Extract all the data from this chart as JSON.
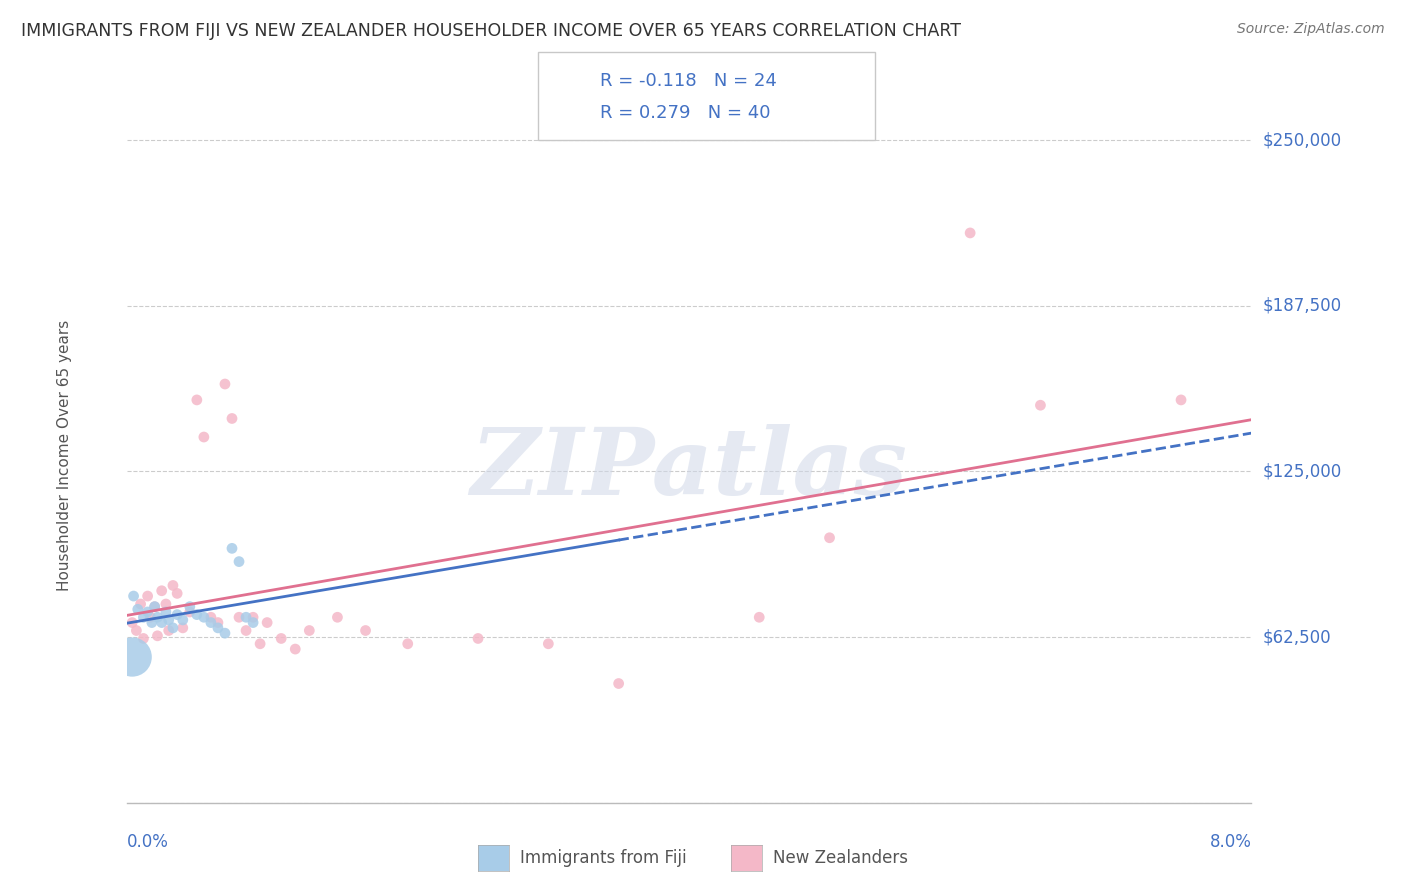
{
  "title": "IMMIGRANTS FROM FIJI VS NEW ZEALANDER HOUSEHOLDER INCOME OVER 65 YEARS CORRELATION CHART",
  "source": "Source: ZipAtlas.com",
  "ylabel": "Householder Income Over 65 years",
  "xlim": [
    0.0,
    8.0
  ],
  "ylim": [
    0,
    262500
  ],
  "yticks": [
    0,
    62500,
    125000,
    187500,
    250000
  ],
  "ytick_labels": [
    "",
    "$62,500",
    "$125,000",
    "$187,500",
    "$250,000"
  ],
  "r1": "-0.118",
  "n1": "24",
  "r2": "0.279",
  "n2": "40",
  "legend_label1": "Immigrants from Fiji",
  "legend_label2": "New Zealanders",
  "color_fiji": "#a8cce8",
  "color_nz": "#f4b8c8",
  "color_fiji_line": "#4472c4",
  "color_nz_line": "#e07090",
  "watermark": "ZIPatlas",
  "fiji_points": [
    [
      0.05,
      78000
    ],
    [
      0.08,
      73000
    ],
    [
      0.12,
      70000
    ],
    [
      0.15,
      72000
    ],
    [
      0.18,
      68000
    ],
    [
      0.2,
      74000
    ],
    [
      0.22,
      70000
    ],
    [
      0.25,
      68000
    ],
    [
      0.28,
      72000
    ],
    [
      0.3,
      69000
    ],
    [
      0.33,
      66000
    ],
    [
      0.36,
      71000
    ],
    [
      0.4,
      69000
    ],
    [
      0.45,
      74000
    ],
    [
      0.5,
      71000
    ],
    [
      0.55,
      70000
    ],
    [
      0.6,
      68000
    ],
    [
      0.65,
      66000
    ],
    [
      0.7,
      64000
    ],
    [
      0.75,
      96000
    ],
    [
      0.8,
      91000
    ],
    [
      0.85,
      70000
    ],
    [
      0.9,
      68000
    ],
    [
      0.04,
      55000
    ]
  ],
  "fiji_sizes": [
    60,
    60,
    60,
    60,
    60,
    60,
    60,
    60,
    60,
    60,
    60,
    60,
    60,
    60,
    60,
    60,
    60,
    60,
    60,
    60,
    60,
    60,
    60,
    800
  ],
  "nz_points": [
    [
      0.04,
      68000
    ],
    [
      0.07,
      65000
    ],
    [
      0.1,
      75000
    ],
    [
      0.12,
      62000
    ],
    [
      0.15,
      78000
    ],
    [
      0.17,
      70000
    ],
    [
      0.2,
      74000
    ],
    [
      0.22,
      63000
    ],
    [
      0.25,
      80000
    ],
    [
      0.28,
      75000
    ],
    [
      0.3,
      65000
    ],
    [
      0.33,
      82000
    ],
    [
      0.36,
      79000
    ],
    [
      0.4,
      66000
    ],
    [
      0.45,
      72000
    ],
    [
      0.5,
      152000
    ],
    [
      0.55,
      138000
    ],
    [
      0.6,
      70000
    ],
    [
      0.65,
      68000
    ],
    [
      0.7,
      158000
    ],
    [
      0.75,
      145000
    ],
    [
      0.8,
      70000
    ],
    [
      0.85,
      65000
    ],
    [
      0.9,
      70000
    ],
    [
      0.95,
      60000
    ],
    [
      1.0,
      68000
    ],
    [
      1.1,
      62000
    ],
    [
      1.2,
      58000
    ],
    [
      1.3,
      65000
    ],
    [
      1.5,
      70000
    ],
    [
      1.7,
      65000
    ],
    [
      2.0,
      60000
    ],
    [
      2.5,
      62000
    ],
    [
      3.0,
      60000
    ],
    [
      3.5,
      45000
    ],
    [
      4.5,
      70000
    ],
    [
      5.0,
      100000
    ],
    [
      6.0,
      215000
    ],
    [
      6.5,
      150000
    ],
    [
      7.5,
      152000
    ]
  ],
  "nz_sizes": [
    60,
    60,
    60,
    60,
    60,
    60,
    60,
    60,
    60,
    60,
    60,
    60,
    60,
    60,
    60,
    60,
    60,
    60,
    60,
    60,
    60,
    60,
    60,
    60,
    60,
    60,
    60,
    60,
    60,
    60,
    60,
    60,
    60,
    60,
    60,
    60,
    60,
    60,
    60,
    60
  ],
  "background_color": "#ffffff",
  "grid_color": "#cccccc"
}
